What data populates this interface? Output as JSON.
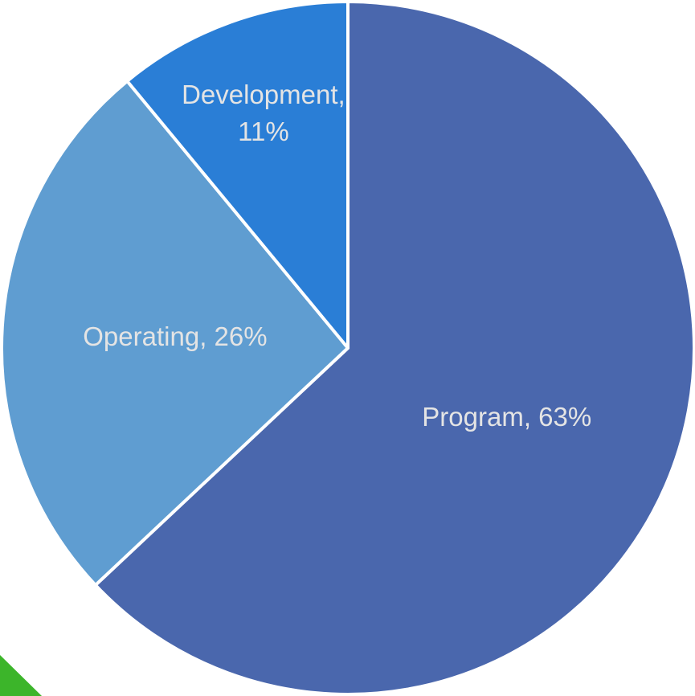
{
  "chart_data": {
    "type": "pie",
    "categories": [
      "Program",
      "Operating",
      "Development"
    ],
    "values": [
      63,
      26,
      11
    ],
    "value_labels": [
      "Program, 63%",
      "Operating, 26%",
      "Development, 11%"
    ],
    "colors": [
      "#4a67ad",
      "#5f9dd1",
      "#2a7ed6"
    ]
  }
}
